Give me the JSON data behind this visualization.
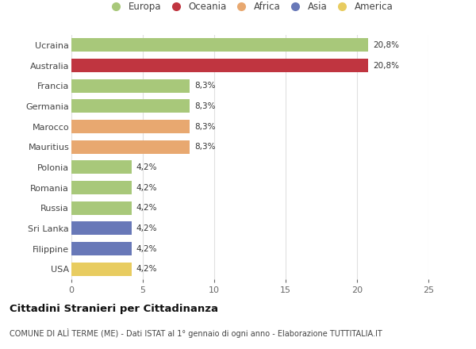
{
  "categories": [
    "Ucraina",
    "Australia",
    "Francia",
    "Germania",
    "Marocco",
    "Mauritius",
    "Polonia",
    "Romania",
    "Russia",
    "Sri Lanka",
    "Filippine",
    "USA"
  ],
  "values": [
    20.8,
    20.8,
    8.3,
    8.3,
    8.3,
    8.3,
    4.2,
    4.2,
    4.2,
    4.2,
    4.2,
    4.2
  ],
  "bar_colors": [
    "#a8c87a",
    "#c03540",
    "#a8c87a",
    "#a8c87a",
    "#e8a870",
    "#e8a870",
    "#a8c87a",
    "#a8c87a",
    "#a8c87a",
    "#6878b8",
    "#6878b8",
    "#e8cc60"
  ],
  "labels": [
    "20,8%",
    "20,8%",
    "8,3%",
    "8,3%",
    "8,3%",
    "8,3%",
    "4,2%",
    "4,2%",
    "4,2%",
    "4,2%",
    "4,2%",
    "4,2%"
  ],
  "xlim": [
    0,
    25
  ],
  "xticks": [
    0,
    5,
    10,
    15,
    20,
    25
  ],
  "legend_labels": [
    "Europa",
    "Oceania",
    "Africa",
    "Asia",
    "America"
  ],
  "legend_colors": [
    "#a8c87a",
    "#c03540",
    "#e8a870",
    "#6878b8",
    "#e8cc60"
  ],
  "title": "Cittadini Stranieri per Cittadinanza",
  "subtitle": "COMUNE DI ALÌ TERME (ME) - Dati ISTAT al 1° gennaio di ogni anno - Elaborazione TUTTITALIA.IT",
  "bg_color": "#ffffff",
  "bar_height": 0.65,
  "grid_color": "#e0e0e0"
}
